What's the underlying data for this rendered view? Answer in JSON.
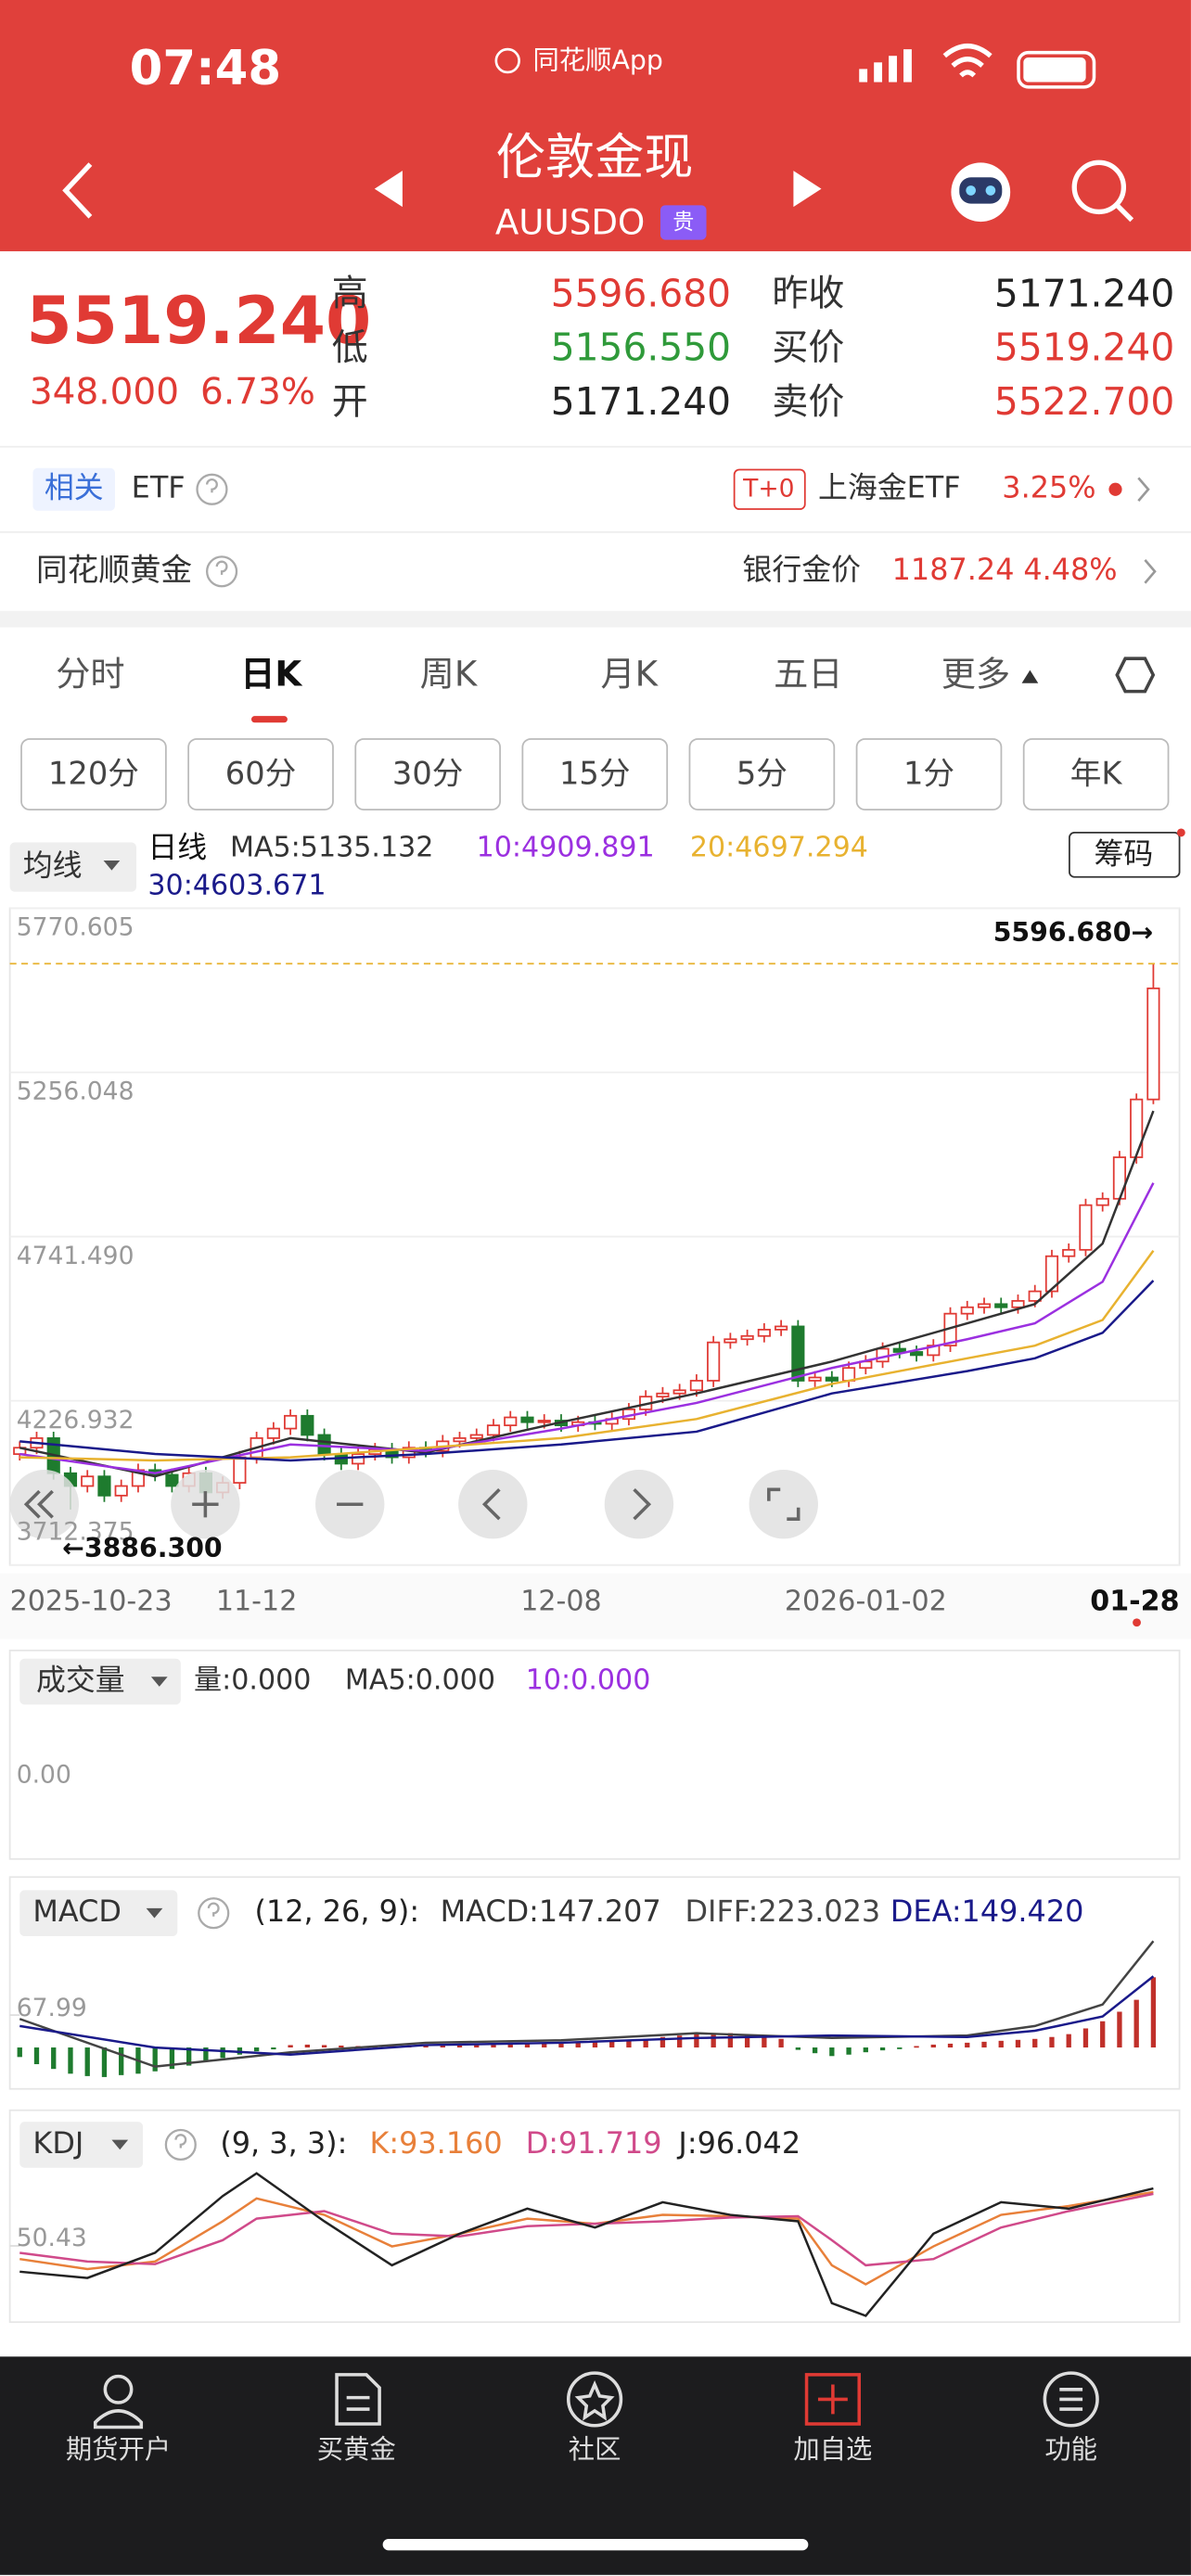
{
  "status_bar": {
    "time": "07:48",
    "app": "同花顺App"
  },
  "header": {
    "title": "伦敦金现",
    "code": "AUUSDO",
    "badge": "贵"
  },
  "quote": {
    "price": "5519.240",
    "change": "348.000",
    "change_pct": "6.73%",
    "stats": [
      [
        "高",
        "5596.680",
        "昨收",
        "5171.240"
      ],
      [
        "低",
        "5156.550",
        "买价",
        "5519.240"
      ],
      [
        "开",
        "5171.240",
        "卖价",
        "5522.700"
      ]
    ]
  },
  "etf": {
    "tag": "相关",
    "label": "ETF",
    "t0": "T+0",
    "fund": "上海金ETF",
    "pct": "3.25%"
  },
  "gold": {
    "label": "同花顺黄金",
    "bank": "银行金价",
    "bank_price": "1187.24",
    "bank_pct": "4.48%"
  },
  "tabs": {
    "items": [
      "分时",
      "日K",
      "周K",
      "月K",
      "五日",
      "更多"
    ],
    "active": 1
  },
  "periods": [
    "120分",
    "60分",
    "30分",
    "15分",
    "5分",
    "1分",
    "年K"
  ],
  "volume": {
    "selector": "成交量",
    "legend": [
      "量:0.000",
      "MA5:0.000",
      "10:0.000"
    ],
    "tick": "0.00"
  },
  "chart_data": [
    {
      "type": "candlestick",
      "selector": "均线",
      "prefix": "日线",
      "button": "筹码",
      "up_color": "#e03a34",
      "down_color": "#1e7b2e",
      "grid": true,
      "categories": [
        "2025-10-23",
        null,
        null,
        null,
        null,
        null,
        null,
        null,
        null,
        null,
        null,
        null,
        null,
        null,
        "11-12",
        null,
        null,
        null,
        null,
        null,
        null,
        null,
        null,
        null,
        null,
        null,
        null,
        null,
        null,
        null,
        null,
        null,
        "12-08",
        null,
        null,
        null,
        null,
        null,
        null,
        null,
        null,
        null,
        null,
        null,
        null,
        null,
        null,
        null,
        null,
        null,
        "2026-01-02",
        null,
        null,
        null,
        null,
        null,
        null,
        null,
        null,
        null,
        null,
        null,
        null,
        null,
        null,
        null,
        null,
        "01-28"
      ],
      "open": [
        4060,
        4080,
        4110,
        4000,
        3960,
        3990,
        3930,
        3960,
        4010,
        3995,
        3960,
        4000,
        3940,
        3970,
        4050,
        4110,
        4140,
        4180,
        4120,
        4060,
        4030,
        4060,
        4075,
        4050,
        4080,
        4070,
        4100,
        4110,
        4120,
        4150,
        4175,
        4160,
        4165,
        4150,
        4160,
        4155,
        4170,
        4200,
        4240,
        4250,
        4260,
        4290,
        4410,
        4420,
        4430,
        4450,
        4460,
        4290,
        4300,
        4290,
        4330,
        4350,
        4390,
        4380,
        4370,
        4400,
        4500,
        4520,
        4530,
        4520,
        4540,
        4570,
        4680,
        4700,
        4840,
        4860,
        4990,
        5171.24
      ],
      "high": [
        4100,
        4130,
        4130,
        4020,
        4010,
        4010,
        3980,
        4030,
        4030,
        4015,
        4020,
        4020,
        3990,
        4070,
        4130,
        4160,
        4200,
        4200,
        4140,
        4080,
        4080,
        4095,
        4095,
        4100,
        4100,
        4120,
        4130,
        4140,
        4170,
        4195,
        4195,
        4185,
        4185,
        4180,
        4180,
        4190,
        4220,
        4260,
        4270,
        4280,
        4310,
        4430,
        4440,
        4450,
        4470,
        4480,
        4480,
        4320,
        4320,
        4350,
        4370,
        4410,
        4410,
        4400,
        4420,
        4520,
        4540,
        4550,
        4550,
        4560,
        4590,
        4700,
        4720,
        4860,
        4880,
        5010,
        5190,
        5596.68
      ],
      "low": [
        4040,
        4060,
        3980,
        3886.3,
        3940,
        3910,
        3910,
        3940,
        3975,
        3940,
        3940,
        3920,
        3920,
        3950,
        4030,
        4090,
        4120,
        4100,
        4040,
        4010,
        4010,
        4040,
        4030,
        4030,
        4050,
        4050,
        4080,
        4090,
        4100,
        4130,
        4140,
        4140,
        4130,
        4130,
        4135,
        4135,
        4150,
        4180,
        4220,
        4230,
        4240,
        4270,
        4390,
        4400,
        4410,
        4430,
        4270,
        4270,
        4270,
        4270,
        4310,
        4330,
        4360,
        4350,
        4350,
        4380,
        4480,
        4500,
        4500,
        4500,
        4520,
        4550,
        4660,
        4680,
        4820,
        4840,
        4970,
        5156.55
      ],
      "close": [
        4080,
        4110,
        4000,
        3960,
        3990,
        3930,
        3960,
        4010,
        3995,
        3960,
        4000,
        3940,
        3970,
        4050,
        4110,
        4140,
        4180,
        4120,
        4060,
        4030,
        4060,
        4075,
        4050,
        4080,
        4070,
        4100,
        4110,
        4120,
        4150,
        4175,
        4160,
        4165,
        4150,
        4160,
        4155,
        4170,
        4200,
        4240,
        4250,
        4260,
        4290,
        4410,
        4420,
        4430,
        4450,
        4460,
        4290,
        4300,
        4290,
        4330,
        4350,
        4390,
        4380,
        4370,
        4400,
        4500,
        4520,
        4530,
        4520,
        4540,
        4570,
        4680,
        4700,
        4840,
        4860,
        4990,
        5171.24,
        5519.24
      ],
      "series": [
        {
          "name": "MA5:5135.132",
          "color": "#333333",
          "x": [
            0,
            8,
            16,
            24,
            32,
            40,
            48,
            56,
            60,
            64,
            67
          ],
          "values": [
            4080,
            3990,
            4110,
            4065,
            4160,
            4250,
            4350,
            4470,
            4530,
            4720,
            5135.132
          ]
        },
        {
          "name": "10:4909.891",
          "color": "#9b30e0",
          "x": [
            0,
            8,
            16,
            24,
            32,
            40,
            48,
            56,
            60,
            64,
            67
          ],
          "values": [
            4060,
            4000,
            4090,
            4070,
            4140,
            4220,
            4330,
            4420,
            4470,
            4600,
            4909.891
          ]
        },
        {
          "name": "20:4697.294",
          "color": "#e8b230",
          "x": [
            0,
            8,
            16,
            24,
            32,
            40,
            48,
            56,
            60,
            64,
            67
          ],
          "values": [
            4050,
            4040,
            4050,
            4080,
            4110,
            4170,
            4280,
            4360,
            4400,
            4480,
            4697.294
          ]
        },
        {
          "name": "30:4603.671",
          "color": "#1a1a8a",
          "x": [
            0,
            8,
            16,
            24,
            32,
            40,
            48,
            56,
            60,
            64,
            67
          ],
          "values": [
            4100,
            4060,
            4040,
            4060,
            4090,
            4130,
            4250,
            4320,
            4360,
            4440,
            4603.671
          ]
        }
      ],
      "ylim": [
        3712.375,
        5770.605
      ],
      "yticks": [
        5770.605,
        5256.048,
        {
          "value": 4741.49,
          "label": "4741.490"
        },
        4226.932,
        3712.375
      ],
      "annotations": [
        {
          "text": "5596.680→",
          "value": 5596.68,
          "index": 67
        },
        {
          "text": "←3886.300",
          "value": 3886.3,
          "index": 3
        }
      ]
    },
    {
      "type": "macd",
      "selector": "MACD",
      "params": "(12, 26, 9):",
      "up_color": "#c0302a",
      "down_color": "#1e7b2e",
      "histogram": {
        "name": "MACD:147.207",
        "color": "#333333",
        "values": [
          -20,
          -35,
          -45,
          -55,
          -60,
          -62,
          -58,
          -55,
          -50,
          -45,
          -38,
          -30,
          -22,
          -15,
          -8,
          -4,
          5,
          6,
          5,
          4,
          3,
          2,
          3,
          4,
          5,
          6,
          7,
          8,
          9,
          10,
          10,
          9,
          8,
          9,
          11,
          13,
          15,
          18,
          22,
          25,
          28,
          30,
          30,
          28,
          24,
          18,
          -5,
          -12,
          -18,
          -15,
          -10,
          -6,
          -3,
          3,
          6,
          8,
          10,
          12,
          14,
          16,
          18,
          22,
          28,
          40,
          55,
          75,
          100,
          147.207
        ]
      },
      "series": [
        {
          "name": "DIFF:223.023",
          "color": "#444444",
          "x": [
            0,
            8,
            16,
            24,
            32,
            40,
            48,
            56,
            60,
            64,
            67
          ],
          "values": [
            60,
            -40,
            -10,
            10,
            15,
            30,
            20,
            25,
            45,
            90,
            223.023
          ]
        },
        {
          "name": "DEA:149.420",
          "color": "#1a1a8a",
          "x": [
            0,
            8,
            16,
            24,
            32,
            40,
            48,
            56,
            60,
            64,
            67
          ],
          "values": [
            45,
            0,
            -15,
            5,
            10,
            20,
            25,
            22,
            35,
            65,
            149.42
          ]
        }
      ],
      "ylim": [
        -80,
        230
      ],
      "yticks": [
        67.99
      ]
    },
    {
      "type": "kdj",
      "selector": "KDJ",
      "params": "(9, 3, 3):",
      "series": [
        {
          "name": "K:93.160",
          "color": "#e8803a",
          "x": [
            0,
            4,
            8,
            12,
            14,
            18,
            22,
            26,
            30,
            34,
            38,
            42,
            46,
            48,
            50,
            54,
            58,
            62,
            67
          ],
          "values": [
            40,
            32,
            38,
            70,
            88,
            75,
            50,
            60,
            72,
            68,
            75,
            74,
            72,
            35,
            20,
            50,
            75,
            82,
            93.16
          ]
        },
        {
          "name": "D:91.719",
          "color": "#d04a8a",
          "x": [
            0,
            4,
            8,
            12,
            14,
            18,
            22,
            26,
            30,
            34,
            38,
            42,
            46,
            48,
            50,
            54,
            58,
            62,
            67
          ],
          "values": [
            45,
            38,
            36,
            55,
            72,
            78,
            60,
            58,
            66,
            68,
            70,
            73,
            74,
            55,
            35,
            40,
            65,
            78,
            91.719
          ]
        },
        {
          "name": "J:96.042",
          "color": "#222222",
          "x": [
            0,
            4,
            8,
            12,
            14,
            18,
            22,
            26,
            30,
            34,
            38,
            42,
            46,
            48,
            50,
            54,
            58,
            62,
            67
          ],
          "values": [
            30,
            25,
            45,
            90,
            108,
            70,
            35,
            60,
            80,
            65,
            85,
            75,
            70,
            5,
            -5,
            60,
            85,
            80,
            96.042
          ]
        }
      ],
      "ylim": [
        -10,
        115
      ],
      "yticks": [
        50.43
      ]
    }
  ],
  "nav": [
    "期货开户",
    "买黄金",
    "社区",
    "加自选",
    "功能"
  ]
}
